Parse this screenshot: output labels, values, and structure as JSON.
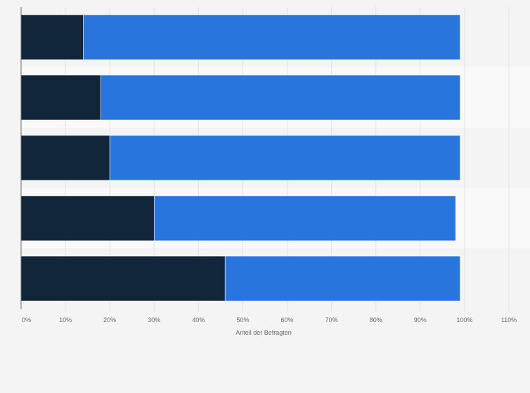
{
  "chart_data": {
    "type": "bar",
    "orientation": "horizontal",
    "stacked": true,
    "categories": [
      "",
      "",
      "",
      "",
      ""
    ],
    "series": [
      {
        "values": [
          14,
          18,
          20,
          30,
          46
        ],
        "color": "#12263a"
      },
      {
        "values": [
          85,
          81,
          79,
          68,
          53
        ],
        "color": "#2876dd"
      }
    ],
    "xlim": [
      0,
      110
    ],
    "x_ticks": [
      "0%",
      "10%",
      "20%",
      "30%",
      "40%",
      "50%",
      "60%",
      "70%",
      "80%",
      "90%",
      "100%",
      "110%"
    ],
    "xlabel": "Anteil der Befragten",
    "ylabel": "",
    "grid": "vertical",
    "legend": "none"
  }
}
